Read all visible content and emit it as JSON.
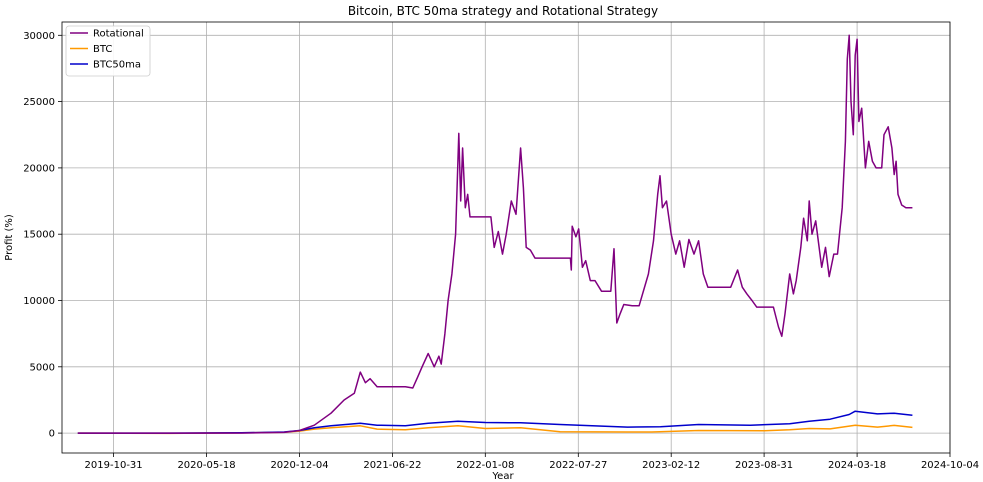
{
  "chart_data": {
    "type": "line",
    "title": "Bitcoin, BTC 50ma strategy and Rotational Strategy",
    "xlabel": "Year",
    "ylabel": "Profit (%)",
    "xlim": [
      "2019-07-12",
      "2024-10-04"
    ],
    "ylim": [
      -1500,
      31000
    ],
    "x_ticks": [
      "2019-10-31",
      "2020-05-18",
      "2020-12-04",
      "2021-06-22",
      "2022-01-08",
      "2022-07-27",
      "2023-02-12",
      "2023-08-31",
      "2024-03-18",
      "2024-10-04"
    ],
    "y_ticks": [
      0,
      5000,
      10000,
      15000,
      20000,
      25000,
      30000
    ],
    "y_tick_labels": [
      "0",
      "5000",
      "10000",
      "15000",
      "20000",
      "25000",
      "30000"
    ],
    "grid": true,
    "legend_position": "upper left",
    "series": [
      {
        "name": "Rotational",
        "color": "#800080",
        "points": [
          [
            "2019-08-15",
            0
          ],
          [
            "2020-03-01",
            0
          ],
          [
            "2020-08-01",
            0
          ],
          [
            "2020-11-01",
            50
          ],
          [
            "2020-12-04",
            200
          ],
          [
            "2021-01-05",
            600
          ],
          [
            "2021-02-10",
            1500
          ],
          [
            "2021-03-10",
            2500
          ],
          [
            "2021-04-01",
            3000
          ],
          [
            "2021-04-14",
            4600
          ],
          [
            "2021-04-25",
            3800
          ],
          [
            "2021-05-05",
            4100
          ],
          [
            "2021-05-20",
            3500
          ],
          [
            "2021-06-15",
            3500
          ],
          [
            "2021-07-20",
            3500
          ],
          [
            "2021-08-05",
            3400
          ],
          [
            "2021-08-15",
            4200
          ],
          [
            "2021-08-25",
            5000
          ],
          [
            "2021-09-07",
            6000
          ],
          [
            "2021-09-20",
            5000
          ],
          [
            "2021-09-30",
            5800
          ],
          [
            "2021-10-05",
            5200
          ],
          [
            "2021-10-13",
            7500
          ],
          [
            "2021-10-20",
            10000
          ],
          [
            "2021-10-28",
            12000
          ],
          [
            "2021-11-05",
            15000
          ],
          [
            "2021-11-12",
            22600
          ],
          [
            "2021-11-16",
            17500
          ],
          [
            "2021-11-20",
            21500
          ],
          [
            "2021-11-26",
            17000
          ],
          [
            "2021-12-01",
            18000
          ],
          [
            "2021-12-06",
            16300
          ],
          [
            "2021-12-15",
            16300
          ],
          [
            "2022-01-08",
            16300
          ],
          [
            "2022-01-20",
            16300
          ],
          [
            "2022-01-27",
            14000
          ],
          [
            "2022-02-05",
            15200
          ],
          [
            "2022-02-14",
            13500
          ],
          [
            "2022-02-22",
            15000
          ],
          [
            "2022-03-05",
            17500
          ],
          [
            "2022-03-15",
            16500
          ],
          [
            "2022-03-25",
            21500
          ],
          [
            "2022-03-31",
            18500
          ],
          [
            "2022-04-06",
            14000
          ],
          [
            "2022-04-15",
            13800
          ],
          [
            "2022-04-25",
            13200
          ],
          [
            "2022-06-10",
            13200
          ],
          [
            "2022-07-10",
            13200
          ],
          [
            "2022-07-12",
            12300
          ],
          [
            "2022-07-14",
            15600
          ],
          [
            "2022-07-22",
            14800
          ],
          [
            "2022-07-28",
            15400
          ],
          [
            "2022-08-05",
            12500
          ],
          [
            "2022-08-12",
            13000
          ],
          [
            "2022-08-22",
            11500
          ],
          [
            "2022-09-01",
            11500
          ],
          [
            "2022-09-15",
            10700
          ],
          [
            "2022-10-05",
            10700
          ],
          [
            "2022-10-12",
            13900
          ],
          [
            "2022-10-18",
            8300
          ],
          [
            "2022-10-25",
            9000
          ],
          [
            "2022-11-02",
            9700
          ],
          [
            "2022-11-20",
            9600
          ],
          [
            "2022-12-05",
            9600
          ],
          [
            "2022-12-25",
            12000
          ],
          [
            "2023-01-05",
            14500
          ],
          [
            "2023-01-14",
            18000
          ],
          [
            "2023-01-19",
            19400
          ],
          [
            "2023-01-24",
            17000
          ],
          [
            "2023-02-02",
            17500
          ],
          [
            "2023-02-12",
            15000
          ],
          [
            "2023-02-22",
            13500
          ],
          [
            "2023-03-02",
            14500
          ],
          [
            "2023-03-12",
            12500
          ],
          [
            "2023-03-22",
            14600
          ],
          [
            "2023-04-02",
            13500
          ],
          [
            "2023-04-12",
            14500
          ],
          [
            "2023-04-22",
            12000
          ],
          [
            "2023-05-02",
            11000
          ],
          [
            "2023-06-05",
            11000
          ],
          [
            "2023-06-20",
            11000
          ],
          [
            "2023-07-05",
            12300
          ],
          [
            "2023-07-15",
            11000
          ],
          [
            "2023-07-25",
            10500
          ],
          [
            "2023-08-05",
            10000
          ],
          [
            "2023-08-15",
            9500
          ],
          [
            "2023-09-20",
            9500
          ],
          [
            "2023-10-01",
            8000
          ],
          [
            "2023-10-08",
            7300
          ],
          [
            "2023-10-15",
            9000
          ],
          [
            "2023-10-25",
            12000
          ],
          [
            "2023-11-02",
            10500
          ],
          [
            "2023-11-08",
            11500
          ],
          [
            "2023-11-18",
            14000
          ],
          [
            "2023-11-24",
            16200
          ],
          [
            "2023-12-02",
            14500
          ],
          [
            "2023-12-06",
            17500
          ],
          [
            "2023-12-12",
            15000
          ],
          [
            "2023-12-20",
            16000
          ],
          [
            "2024-01-02",
            12500
          ],
          [
            "2024-01-10",
            14000
          ],
          [
            "2024-01-18",
            11800
          ],
          [
            "2024-01-28",
            13500
          ],
          [
            "2024-02-05",
            13500
          ],
          [
            "2024-02-15",
            17000
          ],
          [
            "2024-02-22",
            22000
          ],
          [
            "2024-02-26",
            28200
          ],
          [
            "2024-03-01",
            30000
          ],
          [
            "2024-03-05",
            25000
          ],
          [
            "2024-03-10",
            22500
          ],
          [
            "2024-03-14",
            28500
          ],
          [
            "2024-03-18",
            29700
          ],
          [
            "2024-03-22",
            23500
          ],
          [
            "2024-03-28",
            24500
          ],
          [
            "2024-04-05",
            20000
          ],
          [
            "2024-04-12",
            22000
          ],
          [
            "2024-04-20",
            20500
          ],
          [
            "2024-04-28",
            20000
          ],
          [
            "2024-05-10",
            20000
          ],
          [
            "2024-05-15",
            22500
          ],
          [
            "2024-05-24",
            23100
          ],
          [
            "2024-06-01",
            21500
          ],
          [
            "2024-06-06",
            19500
          ],
          [
            "2024-06-10",
            20500
          ],
          [
            "2024-06-14",
            18000
          ],
          [
            "2024-06-22",
            17200
          ],
          [
            "2024-07-01",
            17000
          ],
          [
            "2024-07-15",
            17000
          ]
        ]
      },
      {
        "name": "BTC",
        "color": "#ff9900",
        "points": [
          [
            "2019-08-15",
            0
          ],
          [
            "2020-03-01",
            -20
          ],
          [
            "2020-08-01",
            20
          ],
          [
            "2020-11-01",
            60
          ],
          [
            "2020-12-04",
            150
          ],
          [
            "2021-01-05",
            300
          ],
          [
            "2021-02-10",
            400
          ],
          [
            "2021-04-14",
            550
          ],
          [
            "2021-05-20",
            300
          ],
          [
            "2021-07-20",
            250
          ],
          [
            "2021-09-07",
            400
          ],
          [
            "2021-11-10",
            550
          ],
          [
            "2022-01-08",
            350
          ],
          [
            "2022-03-25",
            400
          ],
          [
            "2022-06-18",
            100
          ],
          [
            "2022-11-10",
            80
          ],
          [
            "2023-01-01",
            80
          ],
          [
            "2023-04-12",
            200
          ],
          [
            "2023-09-01",
            180
          ],
          [
            "2023-10-25",
            250
          ],
          [
            "2023-12-06",
            350
          ],
          [
            "2024-01-20",
            320
          ],
          [
            "2024-03-14",
            600
          ],
          [
            "2024-05-01",
            450
          ],
          [
            "2024-06-06",
            580
          ],
          [
            "2024-07-15",
            430
          ]
        ]
      },
      {
        "name": "BTC50ma",
        "color": "#0000cc",
        "points": [
          [
            "2019-08-15",
            0
          ],
          [
            "2020-03-01",
            0
          ],
          [
            "2020-08-01",
            20
          ],
          [
            "2020-11-01",
            80
          ],
          [
            "2020-12-04",
            200
          ],
          [
            "2021-01-05",
            400
          ],
          [
            "2021-02-10",
            550
          ],
          [
            "2021-04-14",
            750
          ],
          [
            "2021-05-20",
            600
          ],
          [
            "2021-07-20",
            550
          ],
          [
            "2021-09-07",
            750
          ],
          [
            "2021-11-10",
            900
          ],
          [
            "2022-01-08",
            800
          ],
          [
            "2022-03-25",
            780
          ],
          [
            "2022-06-18",
            650
          ],
          [
            "2022-11-10",
            450
          ],
          [
            "2023-01-20",
            480
          ],
          [
            "2023-04-12",
            650
          ],
          [
            "2023-08-01",
            600
          ],
          [
            "2023-10-25",
            700
          ],
          [
            "2023-12-06",
            900
          ],
          [
            "2024-01-20",
            1050
          ],
          [
            "2024-03-01",
            1400
          ],
          [
            "2024-03-14",
            1650
          ],
          [
            "2024-05-01",
            1450
          ],
          [
            "2024-06-06",
            1500
          ],
          [
            "2024-07-15",
            1350
          ]
        ]
      }
    ]
  }
}
